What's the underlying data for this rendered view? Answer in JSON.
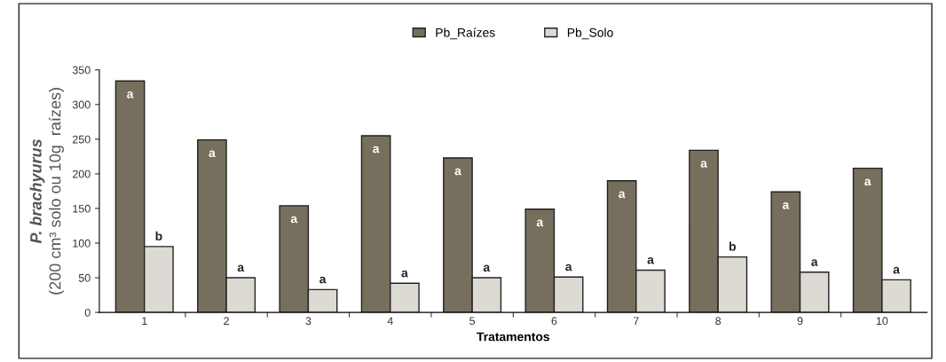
{
  "chart_data": {
    "type": "bar",
    "xlabel": "Tratamentos",
    "ylabel": "P. brachyurus\n(200 cm³ solo ou 10g  raízes)",
    "categories": [
      "1",
      "2",
      "3",
      "4",
      "5",
      "6",
      "7",
      "8",
      "9",
      "10"
    ],
    "series": [
      {
        "name": "Pb_Raízes",
        "color": "#776f5e",
        "values": [
          334,
          249,
          154,
          255,
          223,
          149,
          190,
          234,
          174,
          208
        ],
        "value_labels": [
          "a",
          "a",
          "a",
          "a",
          "a",
          "a",
          "a",
          "a",
          "a",
          "a"
        ]
      },
      {
        "name": "Pb_Solo",
        "color": "#dcdad3",
        "values": [
          95,
          50,
          33,
          42,
          50,
          51,
          61,
          80,
          58,
          47
        ],
        "value_labels": [
          "b",
          "a",
          "a",
          "a",
          "a",
          "a",
          "a",
          "b",
          "a",
          "a"
        ]
      }
    ],
    "ylim": [
      0,
      350
    ],
    "yticks": [
      0,
      50,
      100,
      150,
      200,
      250,
      300,
      350
    ],
    "grid": false,
    "legend": "top"
  }
}
